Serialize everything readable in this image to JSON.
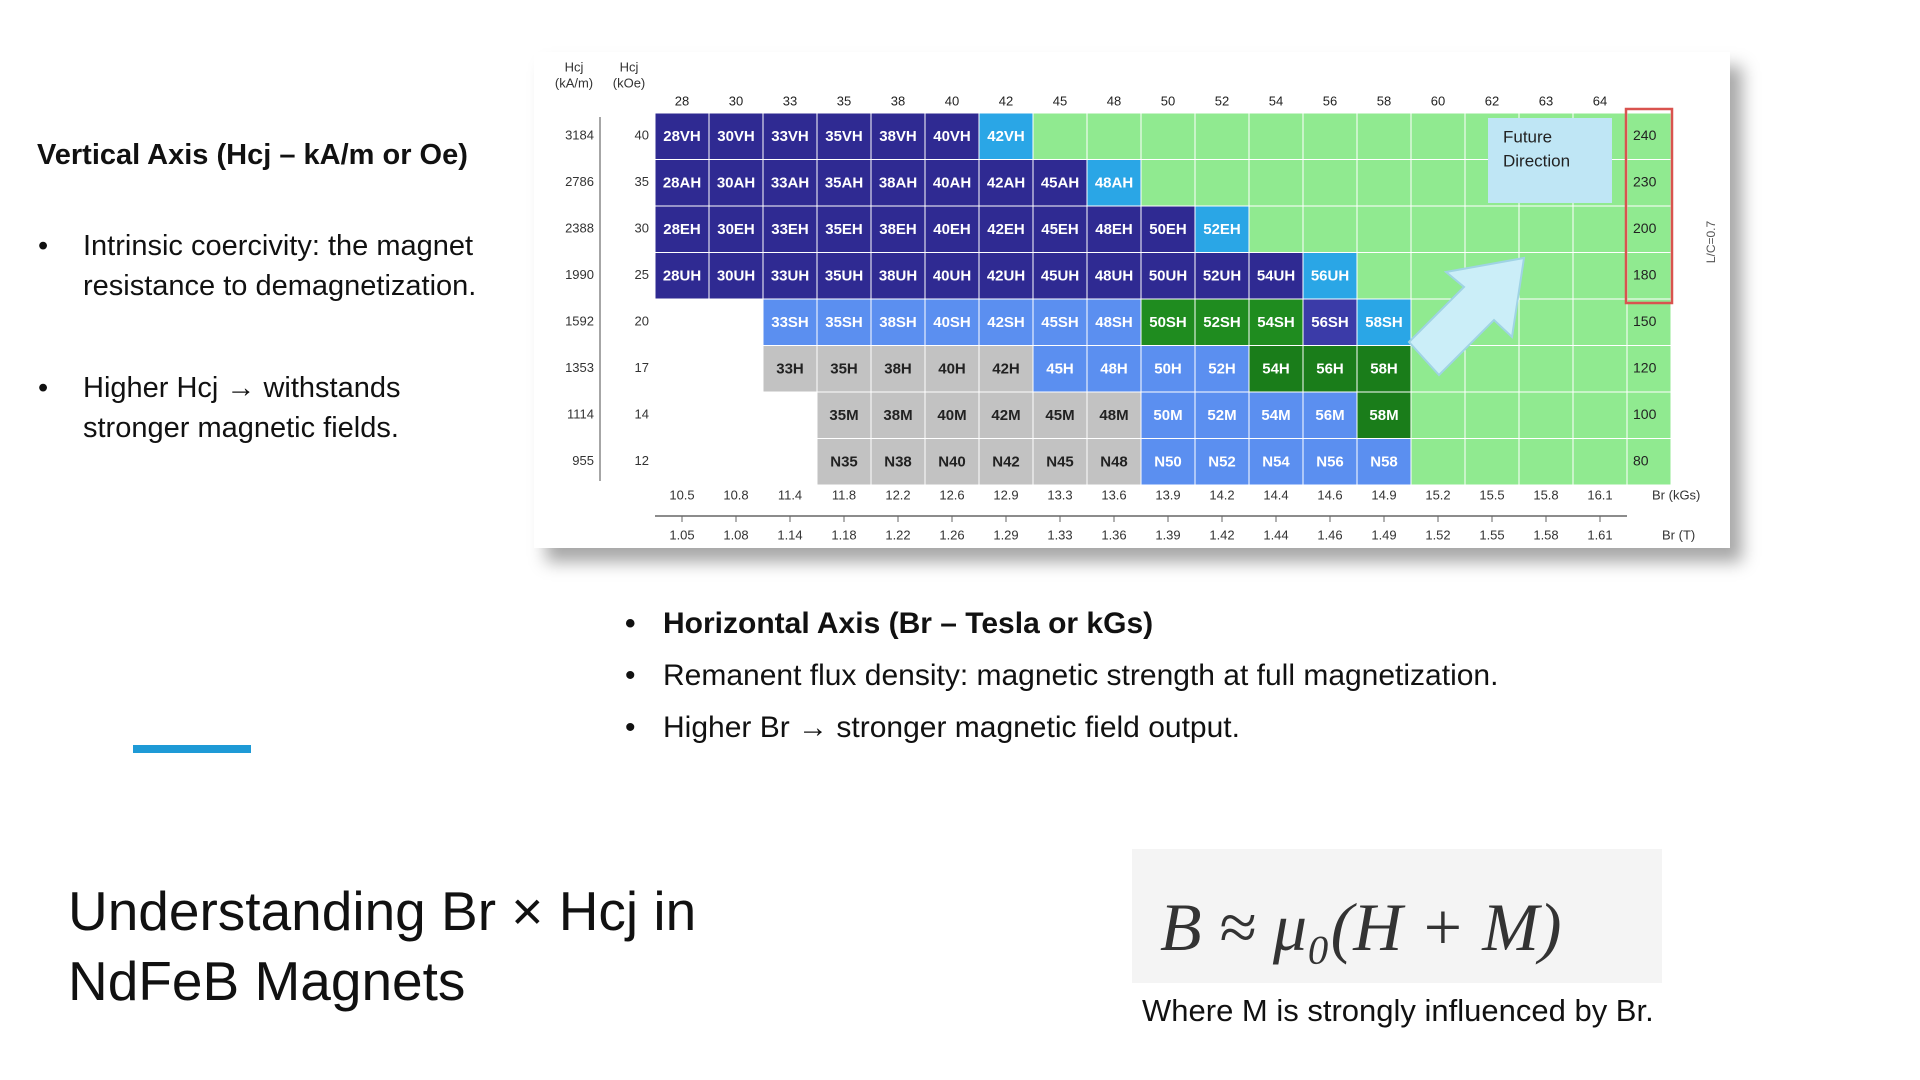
{
  "left_heading": "Vertical Axis (Hcj – kA/m or Oe)",
  "left_bullets": [
    "Intrinsic coercivity: the magnet resistance to demagnetization.",
    "Higher Hcj → withstands stronger magnetic fields."
  ],
  "bottom_bullets": [
    "Horizontal Axis (Br – Tesla or kGs)",
    "Remanent flux density: magnetic strength at full magnetization.",
    "Higher Br → stronger magnetic field output."
  ],
  "title": "Understanding Br × Hcj in NdFeB Magnets",
  "formula": "B ≈ μ₀(H + M)",
  "caption": "Where M is strongly influenced by Br.",
  "grade_chart": {
    "hcj_kam": [
      "Hcj",
      "(kA/m)"
    ],
    "hcj_koe": [
      "Hcj",
      "(kOe)"
    ],
    "top_labels": [
      28,
      30,
      33,
      35,
      38,
      40,
      42,
      45,
      48,
      50,
      52,
      54,
      56,
      58,
      60,
      62,
      63,
      64
    ],
    "rows": [
      {
        "kam": 3184,
        "koe": 40,
        "right": 240,
        "grades": [
          "28VH",
          "30VH",
          "33VH",
          "35VH",
          "38VH",
          "40VH",
          "42VH",
          null,
          null,
          null,
          null,
          null,
          null,
          null,
          null,
          null,
          null,
          null
        ],
        "colors": [
          "#2f2a92",
          "#2f2a92",
          "#2f2a92",
          "#2f2a92",
          "#2f2a92",
          "#2f2a92",
          "#2aa6e6",
          null,
          null,
          null,
          null,
          null,
          null,
          null,
          null,
          null,
          null,
          null
        ]
      },
      {
        "kam": 2786,
        "koe": 35,
        "right": 230,
        "grades": [
          "28AH",
          "30AH",
          "33AH",
          "35AH",
          "38AH",
          "40AH",
          "42AH",
          "45AH",
          "48AH",
          null,
          null,
          null,
          null,
          null,
          null,
          null,
          null,
          null
        ],
        "colors": [
          "#2f2a92",
          "#2f2a92",
          "#2f2a92",
          "#2f2a92",
          "#2f2a92",
          "#2f2a92",
          "#2f2a92",
          "#2f2a92",
          "#2aa6e6",
          null,
          null,
          null,
          null,
          null,
          null,
          null,
          null,
          null
        ]
      },
      {
        "kam": 2388,
        "koe": 30,
        "right": 200,
        "grades": [
          "28EH",
          "30EH",
          "33EH",
          "35EH",
          "38EH",
          "40EH",
          "42EH",
          "45EH",
          "48EH",
          "50EH",
          "52EH",
          null,
          null,
          null,
          null,
          null,
          null,
          null
        ],
        "colors": [
          "#2f2a92",
          "#2f2a92",
          "#2f2a92",
          "#2f2a92",
          "#2f2a92",
          "#2f2a92",
          "#2f2a92",
          "#2f2a92",
          "#2f2a92",
          "#2f2a92",
          "#2aa6e6",
          null,
          null,
          null,
          null,
          null,
          null,
          null
        ]
      },
      {
        "kam": 1990,
        "koe": 25,
        "right": 180,
        "grades": [
          "28UH",
          "30UH",
          "33UH",
          "35UH",
          "38UH",
          "40UH",
          "42UH",
          "45UH",
          "48UH",
          "50UH",
          "52UH",
          "54UH",
          "56UH",
          null,
          null,
          null,
          null,
          null
        ],
        "colors": [
          "#2f2a92",
          "#2f2a92",
          "#2f2a92",
          "#2f2a92",
          "#2f2a92",
          "#2f2a92",
          "#2f2a92",
          "#2f2a92",
          "#2f2a92",
          "#2f2a92",
          "#2f2a92",
          "#2f2a92",
          "#2aa6e6",
          null,
          null,
          null,
          null,
          null
        ]
      },
      {
        "kam": 1592,
        "koe": 20,
        "right": 150,
        "grades": [
          null,
          null,
          "33SH",
          "35SH",
          "38SH",
          "40SH",
          "42SH",
          "45SH",
          "48SH",
          "50SH",
          "52SH",
          "54SH",
          "56SH",
          "58SH",
          null,
          null,
          null,
          null
        ],
        "colors": [
          null,
          null,
          "#5b8ff0",
          "#5b8ff0",
          "#5b8ff0",
          "#5b8ff0",
          "#5b8ff0",
          "#5b8ff0",
          "#5b8ff0",
          "#1f8c1f",
          "#1f8c1f",
          "#1f8c1f",
          "#3b3ba8",
          "#2aa6e6",
          null,
          null,
          null,
          null
        ]
      },
      {
        "kam": 1353,
        "koe": 17,
        "right": 120,
        "grades": [
          null,
          null,
          "33H",
          "35H",
          "38H",
          "40H",
          "42H",
          "45H",
          "48H",
          "50H",
          "52H",
          "54H",
          "56H",
          "58H",
          null,
          null,
          null,
          null
        ],
        "colors": [
          null,
          null,
          "#c2c2c2",
          "#c2c2c2",
          "#c2c2c2",
          "#c2c2c2",
          "#c2c2c2",
          "#5b8ff0",
          "#5b8ff0",
          "#5b8ff0",
          "#5b8ff0",
          "#1a7d1a",
          "#1a7d1a",
          "#1a7d1a",
          null,
          null,
          null,
          null
        ]
      },
      {
        "kam": 1114,
        "koe": 14,
        "right": 100,
        "grades": [
          null,
          null,
          null,
          "35M",
          "38M",
          "40M",
          "42M",
          "45M",
          "48M",
          "50M",
          "52M",
          "54M",
          "56M",
          "58M",
          null,
          null,
          null,
          null
        ],
        "colors": [
          null,
          null,
          null,
          "#c2c2c2",
          "#c2c2c2",
          "#c2c2c2",
          "#c2c2c2",
          "#c2c2c2",
          "#c2c2c2",
          "#5b8ff0",
          "#5b8ff0",
          "#5b8ff0",
          "#5b8ff0",
          "#1a7d1a",
          null,
          null,
          null,
          null
        ]
      },
      {
        "kam": 955,
        "koe": 12,
        "right": 80,
        "grades": [
          null,
          null,
          null,
          "N35",
          "N38",
          "N40",
          "N42",
          "N45",
          "N48",
          "N50",
          "N52",
          "N54",
          "N56",
          "N58",
          null,
          null,
          null,
          null
        ],
        "colors": [
          null,
          null,
          null,
          "#c2c2c2",
          "#c2c2c2",
          "#c2c2c2",
          "#c2c2c2",
          "#c2c2c2",
          "#c2c2c2",
          "#5b8ff0",
          "#5b8ff0",
          "#5b8ff0",
          "#5b8ff0",
          "#5b8ff0",
          null,
          null,
          null,
          null
        ]
      }
    ],
    "br_kgs": [
      10.5,
      10.8,
      11.4,
      11.8,
      12.2,
      12.6,
      12.9,
      13.3,
      13.6,
      13.9,
      14.2,
      14.4,
      14.6,
      14.9,
      15.2,
      15.5,
      15.8,
      16.1
    ],
    "br_t": [
      1.05,
      1.08,
      1.14,
      1.18,
      1.22,
      1.26,
      1.29,
      1.33,
      1.36,
      1.39,
      1.42,
      1.44,
      1.46,
      1.49,
      1.52,
      1.55,
      1.58,
      1.61
    ],
    "br_kgs_unit": "Br (kGs)",
    "br_t_unit": "Br (T)",
    "future": [
      "Future",
      "Direction"
    ],
    "side_note": "L/C=0.7",
    "open_color": "#90ea90",
    "highlight_color": "#d9534f"
  }
}
